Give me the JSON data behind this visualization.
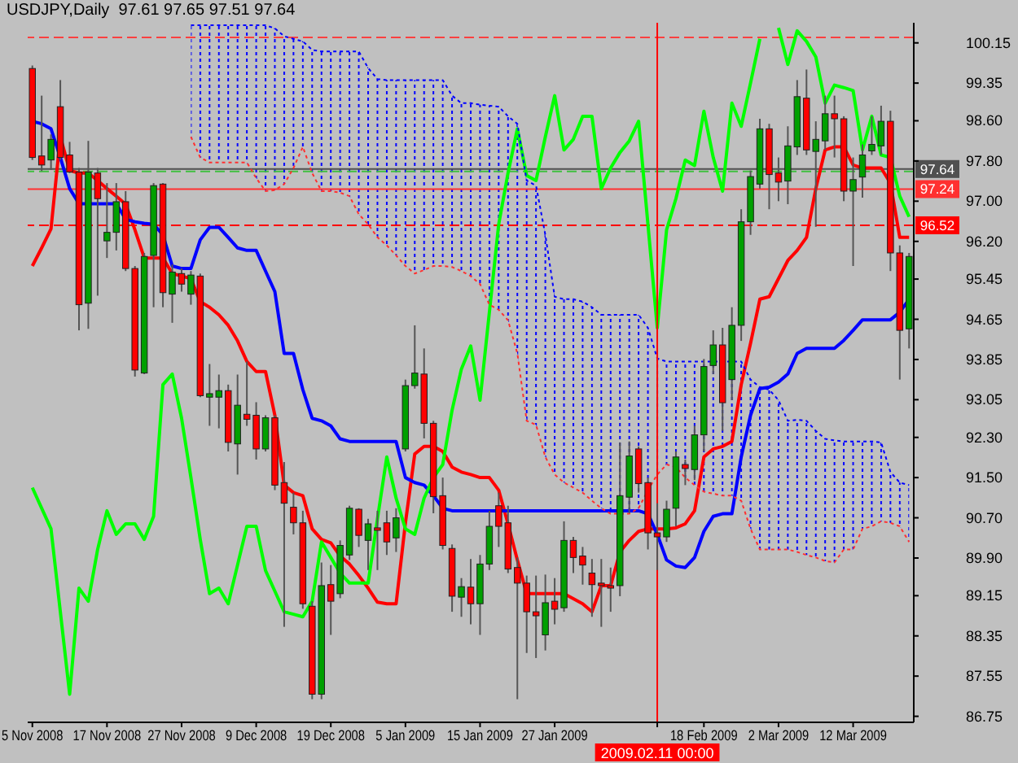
{
  "chart_data": {
    "type": "candlestick",
    "title": "USDJPY,Daily  97.61 97.65 97.51 97.64",
    "categories": [
      "5 Nov 2008",
      null,
      null,
      null,
      null,
      null,
      null,
      null,
      "17 Nov 2008",
      null,
      null,
      null,
      null,
      null,
      null,
      null,
      "27 Nov 2008",
      null,
      null,
      null,
      null,
      null,
      null,
      null,
      "9 Dec 2008",
      null,
      null,
      null,
      null,
      null,
      null,
      null,
      "19 Dec 2008",
      null,
      null,
      null,
      null,
      null,
      null,
      null,
      "5 Jan 2009",
      null,
      null,
      null,
      null,
      null,
      null,
      null,
      "15 Jan 2009",
      null,
      null,
      null,
      null,
      null,
      null,
      null,
      "27 Jan 2009",
      null,
      null,
      null,
      null,
      null,
      null,
      null,
      null,
      null,
      null,
      "2009.02.11 00:00",
      null,
      null,
      null,
      null,
      "18 Feb 2009",
      null,
      null,
      null,
      null,
      null,
      null,
      null,
      "2 Mar 2009",
      null,
      null,
      null,
      null,
      null,
      null,
      null,
      "12 Mar 2009",
      null,
      null,
      null,
      null,
      null,
      null
    ],
    "ohlc": [
      [
        99.64,
        99.7,
        97.82,
        97.87
      ],
      [
        97.9,
        99.1,
        97.6,
        97.72
      ],
      [
        97.82,
        98.33,
        97.62,
        98.23
      ],
      [
        98.88,
        99.41,
        97.82,
        97.87
      ],
      [
        97.92,
        98.18,
        97.56,
        97.58
      ],
      [
        97.58,
        97.66,
        94.43,
        94.94
      ],
      [
        94.97,
        98.2,
        94.46,
        97.58
      ],
      [
        97.56,
        97.66,
        95.12,
        97.05
      ],
      [
        96.21,
        97.36,
        95.87,
        96.38
      ],
      [
        96.38,
        97.36,
        96.02,
        96.99
      ],
      [
        96.99,
        97.2,
        95.61,
        95.66
      ],
      [
        95.66,
        95.71,
        93.51,
        93.64
      ],
      [
        93.58,
        95.97,
        93.56,
        95.9
      ],
      [
        95.92,
        97.36,
        94.89,
        97.31
      ],
      [
        97.34,
        97.36,
        94.89,
        95.18
      ],
      [
        95.15,
        95.74,
        94.58,
        95.59
      ],
      [
        95.56,
        95.66,
        95.2,
        95.35
      ],
      [
        95.15,
        95.61,
        94.94,
        95.53
      ],
      [
        95.51,
        95.56,
        93.1,
        93.13
      ],
      [
        93.1,
        93.76,
        92.53,
        93.17
      ],
      [
        93.1,
        93.55,
        92.48,
        93.23
      ],
      [
        93.23,
        93.35,
        92.02,
        92.2
      ],
      [
        92.17,
        93.55,
        91.56,
        92.94
      ],
      [
        92.76,
        93.81,
        92.53,
        92.66
      ],
      [
        92.74,
        93.0,
        91.86,
        92.07
      ],
      [
        92.07,
        92.74,
        92.02,
        92.69
      ],
      [
        92.69,
        92.74,
        91.25,
        91.35
      ],
      [
        91.4,
        91.81,
        88.53,
        90.99
      ],
      [
        90.91,
        91.2,
        90.37,
        90.6
      ],
      [
        90.6,
        90.84,
        88.89,
        88.99
      ],
      [
        88.94,
        89.04,
        87.09,
        87.19
      ],
      [
        87.19,
        89.81,
        87.09,
        89.35
      ],
      [
        89.37,
        89.76,
        88.37,
        89.04
      ],
      [
        89.19,
        90.25,
        89.1,
        90.15
      ],
      [
        89.96,
        90.94,
        89.86,
        90.89
      ],
      [
        90.87,
        90.89,
        90.12,
        90.35
      ],
      [
        90.25,
        90.68,
        89.66,
        90.58
      ],
      [
        90.5,
        90.84,
        89.66,
        90.45
      ],
      [
        90.6,
        90.84,
        89.96,
        90.22
      ],
      [
        90.3,
        90.89,
        90.02,
        90.7
      ],
      [
        92.07,
        93.45,
        92.02,
        93.33
      ],
      [
        93.33,
        94.53,
        93.27,
        93.58
      ],
      [
        93.56,
        94.07,
        92.28,
        92.58
      ],
      [
        92.58,
        92.63,
        90.79,
        91.12
      ],
      [
        91.14,
        91.5,
        90.07,
        90.15
      ],
      [
        90.09,
        90.17,
        88.83,
        89.14
      ],
      [
        89.12,
        89.5,
        88.73,
        89.33
      ],
      [
        89.32,
        89.88,
        88.58,
        88.99
      ],
      [
        88.99,
        89.96,
        88.37,
        89.78
      ],
      [
        89.78,
        90.84,
        89.66,
        90.53
      ],
      [
        90.94,
        91.2,
        90.12,
        90.53
      ],
      [
        90.6,
        90.94,
        89.6,
        89.68
      ],
      [
        89.71,
        89.91,
        87.09,
        89.4
      ],
      [
        89.4,
        89.55,
        88.01,
        88.83
      ],
      [
        88.83,
        89.55,
        87.91,
        88.75
      ],
      [
        88.37,
        89.57,
        88.06,
        89.01
      ],
      [
        89.04,
        89.5,
        88.58,
        88.88
      ],
      [
        88.91,
        90.63,
        88.83,
        90.25
      ],
      [
        90.25,
        90.32,
        89.6,
        89.91
      ],
      [
        89.94,
        90.12,
        89.37,
        89.76
      ],
      [
        89.6,
        89.88,
        88.73,
        89.37
      ],
      [
        89.4,
        89.88,
        88.53,
        89.35
      ],
      [
        89.35,
        89.71,
        88.83,
        89.3
      ],
      [
        89.35,
        92.2,
        89.14,
        91.14
      ],
      [
        91.11,
        92.22,
        90.79,
        91.93
      ],
      [
        92.07,
        92.12,
        91.2,
        91.38
      ],
      [
        91.4,
        91.5,
        90.07,
        90.4
      ],
      [
        90.4,
        90.99,
        89.66,
        90.32
      ],
      [
        90.32,
        91.04,
        90.22,
        90.87
      ],
      [
        90.89,
        92.02,
        90.53,
        91.91
      ],
      [
        91.76,
        91.86,
        91.35,
        91.68
      ],
      [
        91.66,
        92.53,
        91.45,
        92.35
      ],
      [
        92.35,
        93.86,
        92.02,
        93.71
      ],
      [
        93.73,
        94.43,
        93.56,
        94.14
      ],
      [
        94.14,
        94.48,
        92.43,
        92.99
      ],
      [
        93.45,
        94.89,
        93.04,
        94.53
      ],
      [
        94.53,
        96.84,
        94.22,
        96.59
      ],
      [
        96.59,
        97.61,
        96.33,
        97.49
      ],
      [
        97.34,
        98.64,
        97.25,
        98.44
      ],
      [
        98.44,
        98.54,
        96.84,
        97.53
      ],
      [
        97.56,
        97.87,
        97.0,
        97.38
      ],
      [
        97.4,
        98.49,
        96.94,
        98.1
      ],
      [
        98.08,
        99.41,
        97.92,
        99.08
      ],
      [
        99.05,
        99.62,
        97.92,
        98.02
      ],
      [
        97.99,
        98.59,
        96.49,
        98.23
      ],
      [
        98.2,
        99.1,
        98.02,
        98.74
      ],
      [
        98.74,
        99.1,
        97.87,
        98.64
      ],
      [
        98.64,
        98.69,
        97.0,
        97.2
      ],
      [
        97.2,
        97.87,
        95.71,
        97.43
      ],
      [
        97.48,
        98.13,
        97.07,
        97.92
      ],
      [
        98.0,
        98.69,
        97.92,
        98.13
      ],
      [
        98.1,
        98.9,
        97.92,
        98.59
      ],
      [
        98.59,
        98.8,
        95.61,
        95.97
      ],
      [
        95.97,
        96.12,
        93.45,
        94.43
      ],
      [
        94.46,
        95.97,
        94.07,
        95.9
      ]
    ],
    "colors": [
      "#ff0000",
      "#ff0000",
      "#00a000",
      "#ff0000",
      "#ff0000",
      "#ff0000",
      "#00a000",
      "#ff0000",
      "#00a000",
      "#00a000",
      "#ff0000",
      "#ff0000",
      "#00a000",
      "#00a000",
      "#ff0000",
      "#00a000",
      "#ff0000",
      "#00a000",
      "#ff0000",
      "#00a000",
      "#00a000",
      "#ff0000",
      "#00a000",
      "#ff0000",
      "#ff0000",
      "#00a000",
      "#ff0000",
      "#ff0000",
      "#ff0000",
      "#ff0000",
      "#ff0000",
      "#00a000",
      "#ff0000",
      "#00a000",
      "#00a000",
      "#ff0000",
      "#00a000",
      "#ff0000",
      "#ff0000",
      "#00a000",
      "#00a000",
      "#00a000",
      "#ff0000",
      "#ff0000",
      "#ff0000",
      "#ff0000",
      "#00a000",
      "#ff0000",
      "#00a000",
      "#00a000",
      "#ff0000",
      "#ff0000",
      "#ff0000",
      "#ff0000",
      "#ff0000",
      "#00a000",
      "#ff0000",
      "#00a000",
      "#ff0000",
      "#ff0000",
      "#ff0000",
      "#ff0000",
      "#ff0000",
      "#00a000",
      "#00a000",
      "#ff0000",
      "#ff0000",
      "#ff0000",
      "#00a000",
      "#00a000",
      "#ff0000",
      "#00a000",
      "#00a000",
      "#00a000",
      "#ff0000",
      "#00a000",
      "#00a000",
      "#00a000",
      "#00a000",
      "#ff0000",
      "#ff0000",
      "#00a000",
      "#00a000",
      "#ff0000",
      "#00a000",
      "#00a000",
      "#ff0000",
      "#ff0000",
      "#00a000",
      "#00a000",
      "#00a000",
      "#00a000",
      "#ff0000",
      "#ff0000",
      "#00a000"
    ],
    "series": [
      {
        "type": "line",
        "color": "#ff0000",
        "values": [
          95.71,
          96.07,
          96.45,
          98.28,
          97.61,
          97.56,
          97.56,
          97.41,
          97.25,
          97.1,
          96.94,
          96.43,
          95.87,
          95.87,
          95.87,
          95.56,
          95.51,
          95.46,
          95.0,
          94.89,
          94.74,
          94.53,
          94.22,
          93.81,
          93.61,
          93.61,
          92.74,
          91.35,
          91.2,
          91.14,
          90.48,
          90.27,
          90.2,
          89.94,
          89.78,
          89.55,
          89.3,
          89.02,
          88.99,
          88.99,
          90.6,
          91.97,
          92.12,
          92.12,
          92.02,
          91.71,
          91.61,
          91.56,
          91.5,
          91.5,
          91.25,
          90.58,
          89.86,
          89.19,
          89.19,
          89.19,
          89.19,
          89.19,
          89.09,
          88.99,
          88.83,
          89.35,
          89.35,
          90.02,
          90.25,
          90.43,
          90.48,
          90.48,
          90.48,
          90.5,
          90.58,
          90.84,
          91.91,
          92.07,
          92.12,
          92.22,
          93.35,
          94.17,
          95.05,
          95.1,
          95.46,
          95.82,
          96.02,
          96.28,
          97.25,
          98.02,
          98.08,
          98.08,
          97.72,
          97.66,
          97.66,
          97.66,
          97.36,
          96.28,
          96.28
        ]
      },
      {
        "type": "line",
        "color": "#0000ff",
        "values": [
          98.59,
          98.54,
          98.44,
          97.87,
          97.25,
          96.95,
          96.95,
          96.95,
          96.95,
          96.95,
          96.64,
          96.59,
          96.56,
          96.54,
          96.33,
          95.71,
          95.66,
          95.66,
          96.23,
          96.48,
          96.48,
          96.28,
          96.07,
          96.02,
          96.02,
          95.61,
          95.2,
          93.97,
          93.97,
          93.25,
          92.68,
          92.63,
          92.53,
          92.27,
          92.22,
          92.22,
          92.22,
          92.22,
          92.22,
          92.22,
          91.5,
          91.4,
          91.35,
          91.14,
          90.89,
          90.84,
          90.84,
          90.84,
          90.84,
          90.84,
          90.84,
          90.84,
          90.84,
          90.84,
          90.84,
          90.84,
          90.84,
          90.84,
          90.84,
          90.84,
          90.84,
          90.84,
          90.84,
          90.84,
          90.84,
          90.84,
          90.78,
          90.37,
          89.86,
          89.74,
          89.71,
          89.91,
          90.43,
          90.73,
          90.78,
          90.78,
          91.91,
          92.74,
          93.27,
          93.3,
          93.4,
          93.56,
          93.97,
          94.07,
          94.07,
          94.07,
          94.07,
          94.23,
          94.43,
          94.64,
          94.64,
          94.64,
          94.64,
          94.79,
          95.05
        ]
      },
      {
        "type": "line",
        "color": "#00ff00",
        "values": [
          91.3,
          90.89,
          90.48,
          88.83,
          87.19,
          89.3,
          89.04,
          90.07,
          90.84,
          90.37,
          90.58,
          90.58,
          90.27,
          90.73,
          93.35,
          93.56,
          92.68,
          91.5,
          90.27,
          89.19,
          89.3,
          88.99,
          89.76,
          90.53,
          90.53,
          89.65,
          89.24,
          88.83,
          88.78,
          88.73,
          89.04,
          90.22,
          89.91,
          89.6,
          89.4,
          89.4,
          89.4,
          90.68,
          91.91,
          91.09,
          90.48,
          90.37,
          91.09,
          91.5,
          91.76,
          92.84,
          93.66,
          94.12,
          93.04,
          94.79,
          96.54,
          97.56,
          98.44,
          97.51,
          97.41,
          98.28,
          99.1,
          98.02,
          98.23,
          98.69,
          98.69,
          97.25,
          97.66,
          97.97,
          98.2,
          98.59,
          96.54,
          94.48,
          96.43,
          97.05,
          97.82,
          97.71,
          98.79,
          97.87,
          97.2,
          98.95,
          98.49,
          99.35,
          100.23,
          null,
          100.45,
          99.72,
          100.39,
          100.18,
          99.87,
          98.95,
          99.31,
          99.26,
          99.2,
          98.02,
          98.69,
          97.92,
          97.87,
          97.1,
          96.69
        ]
      },
      {
        "type": "line",
        "color": "#ff3030",
        "line_style": "dotted",
        "values": [
          null,
          null,
          null,
          null,
          null,
          null,
          null,
          null,
          null,
          null,
          null,
          null,
          null,
          null,
          null,
          null,
          null,
          98.28,
          97.87,
          97.77,
          97.77,
          97.77,
          97.77,
          97.77,
          97.46,
          97.2,
          97.22,
          97.34,
          97.66,
          98.08,
          97.56,
          97.2,
          97.2,
          97.17,
          97.1,
          96.74,
          96.54,
          96.28,
          96.12,
          95.92,
          95.71,
          95.56,
          95.63,
          95.71,
          95.71,
          95.69,
          95.61,
          95.51,
          95.35,
          94.94,
          94.84,
          94.63,
          93.97,
          92.63,
          92.55,
          91.91,
          91.56,
          91.4,
          91.3,
          91.2,
          91.04,
          90.89,
          90.78,
          90.78,
          90.78,
          90.89,
          91.25,
          91.56,
          91.76,
          91.71,
          91.5,
          91.35,
          91.22,
          91.18,
          91.14,
          91.14,
          91.04,
          90.48,
          90.07,
          90.07,
          90.07,
          90.07,
          90.02,
          89.96,
          89.91,
          89.84,
          89.81,
          90.07,
          90.07,
          90.48,
          90.53,
          90.63,
          90.6,
          90.53,
          90.22
        ]
      },
      {
        "type": "area",
        "color": "#0000ff",
        "line_style": "dotted",
        "values": [
          null,
          null,
          null,
          null,
          null,
          null,
          null,
          null,
          null,
          null,
          null,
          null,
          null,
          null,
          null,
          null,
          null,
          100.5,
          100.5,
          100.5,
          100.5,
          100.5,
          100.5,
          100.5,
          100.5,
          100.5,
          100.44,
          100.28,
          100.23,
          100.18,
          100.01,
          99.98,
          99.98,
          99.98,
          99.98,
          99.98,
          99.65,
          99.43,
          99.41,
          99.41,
          99.41,
          99.41,
          99.41,
          99.41,
          99.41,
          99.1,
          98.95,
          98.95,
          98.92,
          98.9,
          98.88,
          98.69,
          98.54,
          97.41,
          97.31,
          96.33,
          95.1,
          95.05,
          95.05,
          95.0,
          94.89,
          94.74,
          94.74,
          94.74,
          94.74,
          94.74,
          94.48,
          93.87,
          93.81,
          93.81,
          93.81,
          93.81,
          93.81,
          93.81,
          93.81,
          93.81,
          93.81,
          93.45,
          93.3,
          93.25,
          93.04,
          92.63,
          92.65,
          92.63,
          92.43,
          92.27,
          92.24,
          92.22,
          92.22,
          92.22,
          92.22,
          92.2,
          91.61,
          91.4,
          91.35
        ]
      }
    ],
    "ylim": [
      86.63,
      100.55
    ],
    "yticks": [
      100.15,
      99.35,
      {
        "value": 98.6,
        "label": "98.60"
      },
      {
        "value": 97.8,
        "label": "97.80"
      },
      {
        "value": 97,
        "label": "97.00"
      },
      {
        "value": 96.2,
        "label": "96.20"
      },
      95.45,
      94.65,
      93.85,
      93.05,
      {
        "value": 92.3,
        "label": "92.30"
      },
      {
        "value": 91.5,
        "label": "91.50"
      },
      {
        "value": 90.7,
        "label": "90.70"
      },
      {
        "value": 89.9,
        "label": "89.90"
      },
      89.15,
      88.35,
      87.55,
      86.75
    ],
    "ref_lines": [
      {
        "axis": "y",
        "value": 100.26,
        "color": "#ff4040",
        "line_style": "dashed"
      },
      {
        "axis": "y",
        "value": 97.59,
        "color": "#40c040",
        "line_style": "dashed"
      },
      {
        "axis": "y",
        "value": 97.64,
        "label": "97.64",
        "color": "#505050"
      },
      {
        "axis": "y",
        "value": 97.24,
        "label": "97.24",
        "color": "#ff3030"
      },
      {
        "axis": "y",
        "value": 96.52,
        "label": "96.52",
        "color": "#ff0000",
        "line_style": "dashed"
      },
      {
        "axis": "x",
        "value": "2009.02.11 00:00",
        "color": "#ff0000"
      }
    ]
  }
}
